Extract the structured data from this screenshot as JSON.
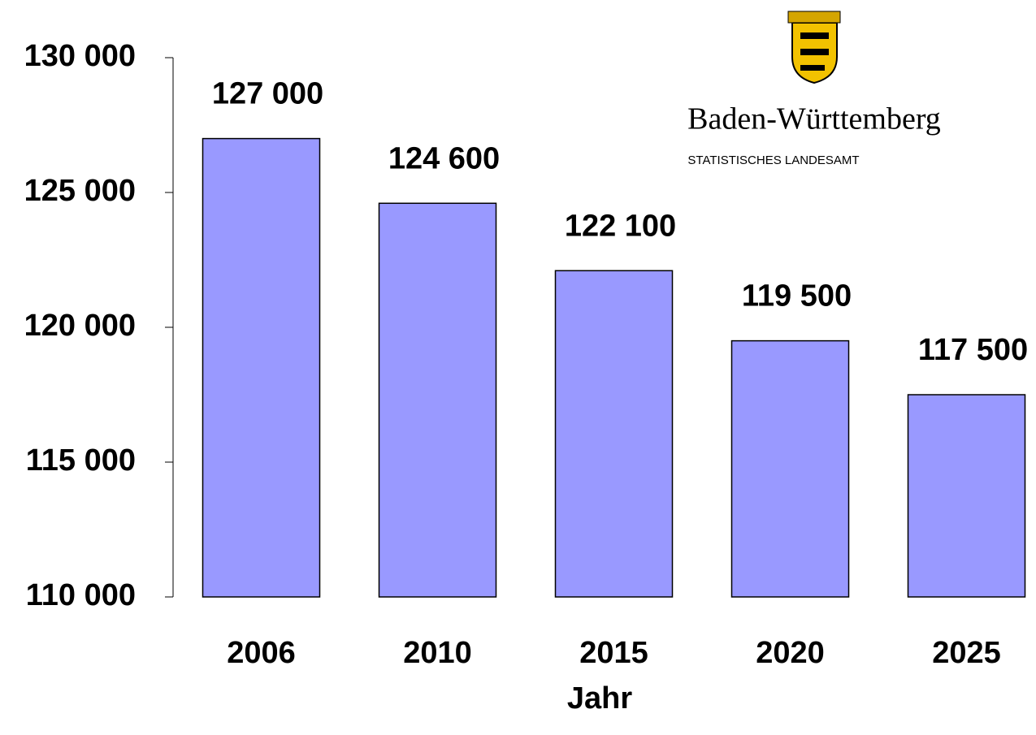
{
  "chart_data": {
    "type": "bar",
    "x_label": "Jahr",
    "categories": [
      "2006",
      "2010",
      "2015",
      "2020",
      "2025"
    ],
    "values": [
      127000,
      124600,
      122100,
      119500,
      117500
    ],
    "value_labels": [
      "127 000",
      "124 600",
      "122 100",
      "119 500",
      "117 500"
    ],
    "color": "#9999ff",
    "ylim": [
      110000,
      130000
    ],
    "yticks": [
      {
        "value": 110000,
        "label": "110 000"
      },
      {
        "value": 115000,
        "label": "115 000"
      },
      {
        "value": 120000,
        "label": "120 000"
      },
      {
        "value": 125000,
        "label": "125 000"
      },
      {
        "value": 130000,
        "label": "130 000"
      }
    ],
    "grid": false
  },
  "logo": {
    "name": "Baden-Württemberg",
    "subtitle": "STATISTISCHES LANDESAMT"
  }
}
